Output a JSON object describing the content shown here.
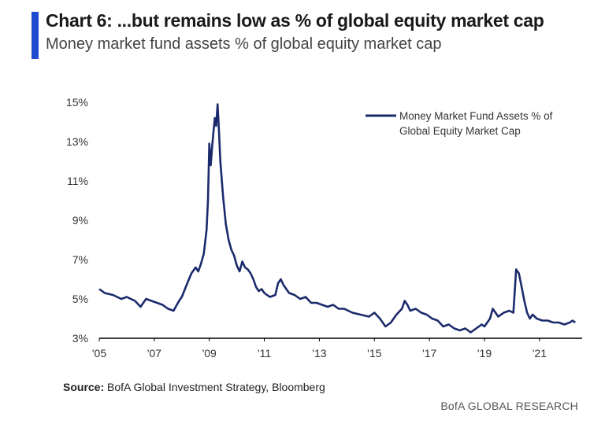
{
  "header": {
    "title": "Chart 6: ...but remains low as % of global equity market cap",
    "subtitle": "Money market fund assets % of global equity market cap"
  },
  "footer": {
    "source_label": "Source:",
    "source_text": "BofA Global Investment Strategy, Bloomberg",
    "brand": "BofA GLOBAL RESEARCH"
  },
  "colors": {
    "accent_bar": "#1f4bd1",
    "series_line": "#1b2a6b",
    "axis": "#000000"
  },
  "chart_data": {
    "type": "line",
    "title": "",
    "xlabel": "",
    "ylabel": "",
    "xlim": [
      2005,
      2023
    ],
    "ylim": [
      3,
      15
    ],
    "grid": false,
    "legend_position": "top-right",
    "x_tick_values": [
      2005,
      2007,
      2009,
      2011,
      2013,
      2015,
      2017,
      2019,
      2021
    ],
    "x_tick_labels": [
      "'05",
      "'07",
      "'09",
      "'11",
      "'13",
      "'15",
      "'17",
      "'19",
      "'21"
    ],
    "y_tick_values": [
      3,
      5,
      7,
      9,
      11,
      13,
      15
    ],
    "y_tick_labels": [
      "3%",
      "5%",
      "7%",
      "9%",
      "11%",
      "13%",
      "15%"
    ],
    "series": [
      {
        "name": "Money Market Fund Assets % of Global Equity Market Cap",
        "x": [
          2005.0,
          2005.2,
          2005.5,
          2005.8,
          2006.0,
          2006.3,
          2006.5,
          2006.7,
          2006.9,
          2007.1,
          2007.3,
          2007.5,
          2007.7,
          2007.9,
          2008.0,
          2008.2,
          2008.35,
          2008.5,
          2008.6,
          2008.7,
          2008.8,
          2008.9,
          2008.95,
          2009.0,
          2009.05,
          2009.1,
          2009.15,
          2009.2,
          2009.25,
          2009.3,
          2009.35,
          2009.4,
          2009.5,
          2009.6,
          2009.7,
          2009.8,
          2009.9,
          2010.0,
          2010.1,
          2010.2,
          2010.3,
          2010.4,
          2010.5,
          2010.6,
          2010.7,
          2010.8,
          2010.9,
          2011.0,
          2011.2,
          2011.4,
          2011.5,
          2011.6,
          2011.7,
          2011.9,
          2012.1,
          2012.3,
          2012.5,
          2012.7,
          2012.9,
          2013.1,
          2013.3,
          2013.5,
          2013.7,
          2013.9,
          2014.2,
          2014.5,
          2014.8,
          2015.0,
          2015.2,
          2015.4,
          2015.6,
          2015.8,
          2016.0,
          2016.1,
          2016.2,
          2016.3,
          2016.5,
          2016.7,
          2016.9,
          2017.1,
          2017.3,
          2017.5,
          2017.7,
          2017.9,
          2018.1,
          2018.3,
          2018.5,
          2018.7,
          2018.9,
          2019.0,
          2019.1,
          2019.2,
          2019.3,
          2019.5,
          2019.7,
          2019.9,
          2020.05,
          2020.15,
          2020.25,
          2020.35,
          2020.45,
          2020.55,
          2020.65,
          2020.75,
          2020.9,
          2021.1,
          2021.3,
          2021.5,
          2021.7,
          2021.9,
          2022.1,
          2022.2,
          2022.3
        ],
        "values": [
          5.5,
          5.3,
          5.2,
          5.0,
          5.1,
          4.9,
          4.6,
          5.0,
          4.9,
          4.8,
          4.7,
          4.5,
          4.4,
          4.9,
          5.1,
          5.8,
          6.3,
          6.6,
          6.4,
          6.8,
          7.3,
          8.5,
          10.0,
          12.9,
          11.8,
          12.7,
          13.5,
          14.2,
          13.8,
          14.9,
          13.6,
          12.0,
          10.2,
          8.8,
          8.0,
          7.5,
          7.2,
          6.7,
          6.4,
          6.9,
          6.6,
          6.5,
          6.3,
          6.0,
          5.6,
          5.4,
          5.5,
          5.3,
          5.1,
          5.2,
          5.8,
          6.0,
          5.7,
          5.3,
          5.2,
          5.0,
          5.1,
          4.8,
          4.8,
          4.7,
          4.6,
          4.7,
          4.5,
          4.5,
          4.3,
          4.2,
          4.1,
          4.3,
          4.0,
          3.6,
          3.8,
          4.2,
          4.5,
          4.9,
          4.7,
          4.4,
          4.5,
          4.3,
          4.2,
          4.0,
          3.9,
          3.6,
          3.7,
          3.5,
          3.4,
          3.5,
          3.3,
          3.5,
          3.7,
          3.6,
          3.8,
          4.0,
          4.5,
          4.1,
          4.3,
          4.4,
          4.3,
          6.5,
          6.3,
          5.6,
          4.9,
          4.3,
          4.0,
          4.2,
          4.0,
          3.9,
          3.9,
          3.8,
          3.8,
          3.7,
          3.8,
          3.9,
          3.8
        ]
      }
    ]
  }
}
